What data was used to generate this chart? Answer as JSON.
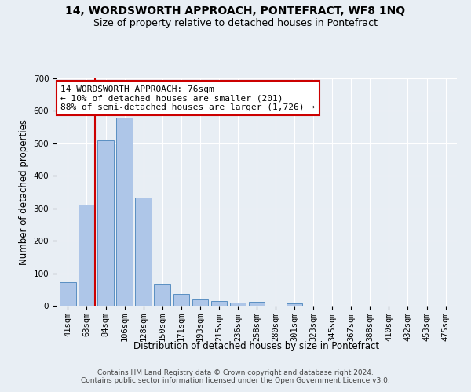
{
  "title": "14, WORDSWORTH APPROACH, PONTEFRACT, WF8 1NQ",
  "subtitle": "Size of property relative to detached houses in Pontefract",
  "xlabel": "Distribution of detached houses by size in Pontefract",
  "ylabel": "Number of detached properties",
  "categories": [
    "41sqm",
    "63sqm",
    "84sqm",
    "106sqm",
    "128sqm",
    "150sqm",
    "171sqm",
    "193sqm",
    "215sqm",
    "236sqm",
    "258sqm",
    "280sqm",
    "301sqm",
    "323sqm",
    "345sqm",
    "367sqm",
    "388sqm",
    "410sqm",
    "432sqm",
    "453sqm",
    "475sqm"
  ],
  "values": [
    72,
    312,
    510,
    580,
    332,
    68,
    37,
    20,
    15,
    10,
    12,
    0,
    8,
    0,
    0,
    0,
    0,
    0,
    0,
    0,
    0
  ],
  "bar_color": "#aec6e8",
  "bar_edge_color": "#5a8fc2",
  "vline_x_index": 1,
  "vline_color": "#cc0000",
  "annotation_text": "14 WORDSWORTH APPROACH: 76sqm\n← 10% of detached houses are smaller (201)\n88% of semi-detached houses are larger (1,726) →",
  "annotation_box_facecolor": "#ffffff",
  "annotation_box_edgecolor": "#cc0000",
  "ylim": [
    0,
    700
  ],
  "yticks": [
    0,
    100,
    200,
    300,
    400,
    500,
    600,
    700
  ],
  "bg_color": "#e8eef4",
  "footnote": "Contains HM Land Registry data © Crown copyright and database right 2024.\nContains public sector information licensed under the Open Government Licence v3.0.",
  "title_fontsize": 10,
  "subtitle_fontsize": 9,
  "xlabel_fontsize": 8.5,
  "ylabel_fontsize": 8.5,
  "tick_fontsize": 7.5,
  "annotation_fontsize": 8,
  "footnote_fontsize": 6.5
}
